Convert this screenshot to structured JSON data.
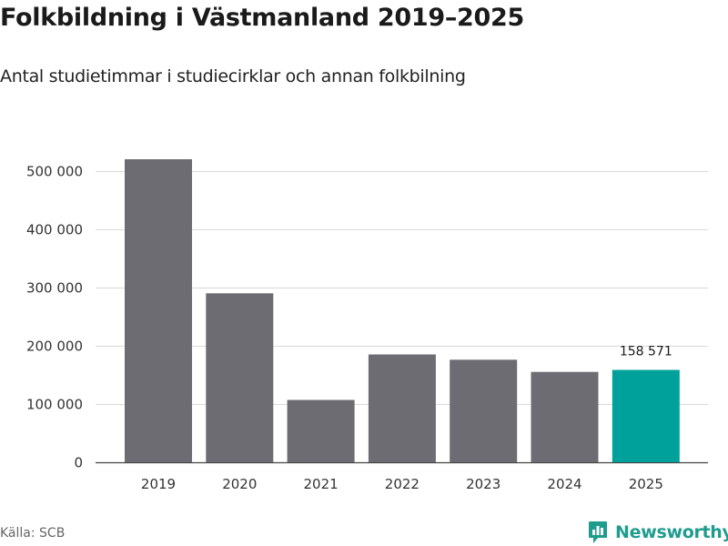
{
  "title": "Folkbildning i Västmanland 2019–2025",
  "subtitle": "Antal studietimmar i studiecirklar och annan folkbilning",
  "source": "Källa: SCB",
  "brand": {
    "name": "Newsworthy",
    "icon": "newsworthy-logo-icon",
    "color": "#1f9c8e"
  },
  "colors": {
    "bar": "#6d6c72",
    "highlight": "#00a19a",
    "grid": "#d9d9d9",
    "axis": "#444444"
  },
  "chart_data": {
    "type": "bar",
    "categories": [
      "2019",
      "2020",
      "2021",
      "2022",
      "2023",
      "2024",
      "2025"
    ],
    "values": [
      520000,
      290000,
      107000,
      185000,
      176000,
      155000,
      158571
    ],
    "highlight_index": 6,
    "data_labels": [
      null,
      null,
      null,
      null,
      null,
      null,
      "158 571"
    ],
    "yticks": [
      0,
      100000,
      200000,
      300000,
      400000,
      500000
    ],
    "ytick_labels": [
      "0",
      "100 000",
      "200 000",
      "300 000",
      "400 000",
      "500 000"
    ],
    "ylim": [
      0,
      545000
    ],
    "grid": true,
    "xlabel": "",
    "ylabel": ""
  }
}
